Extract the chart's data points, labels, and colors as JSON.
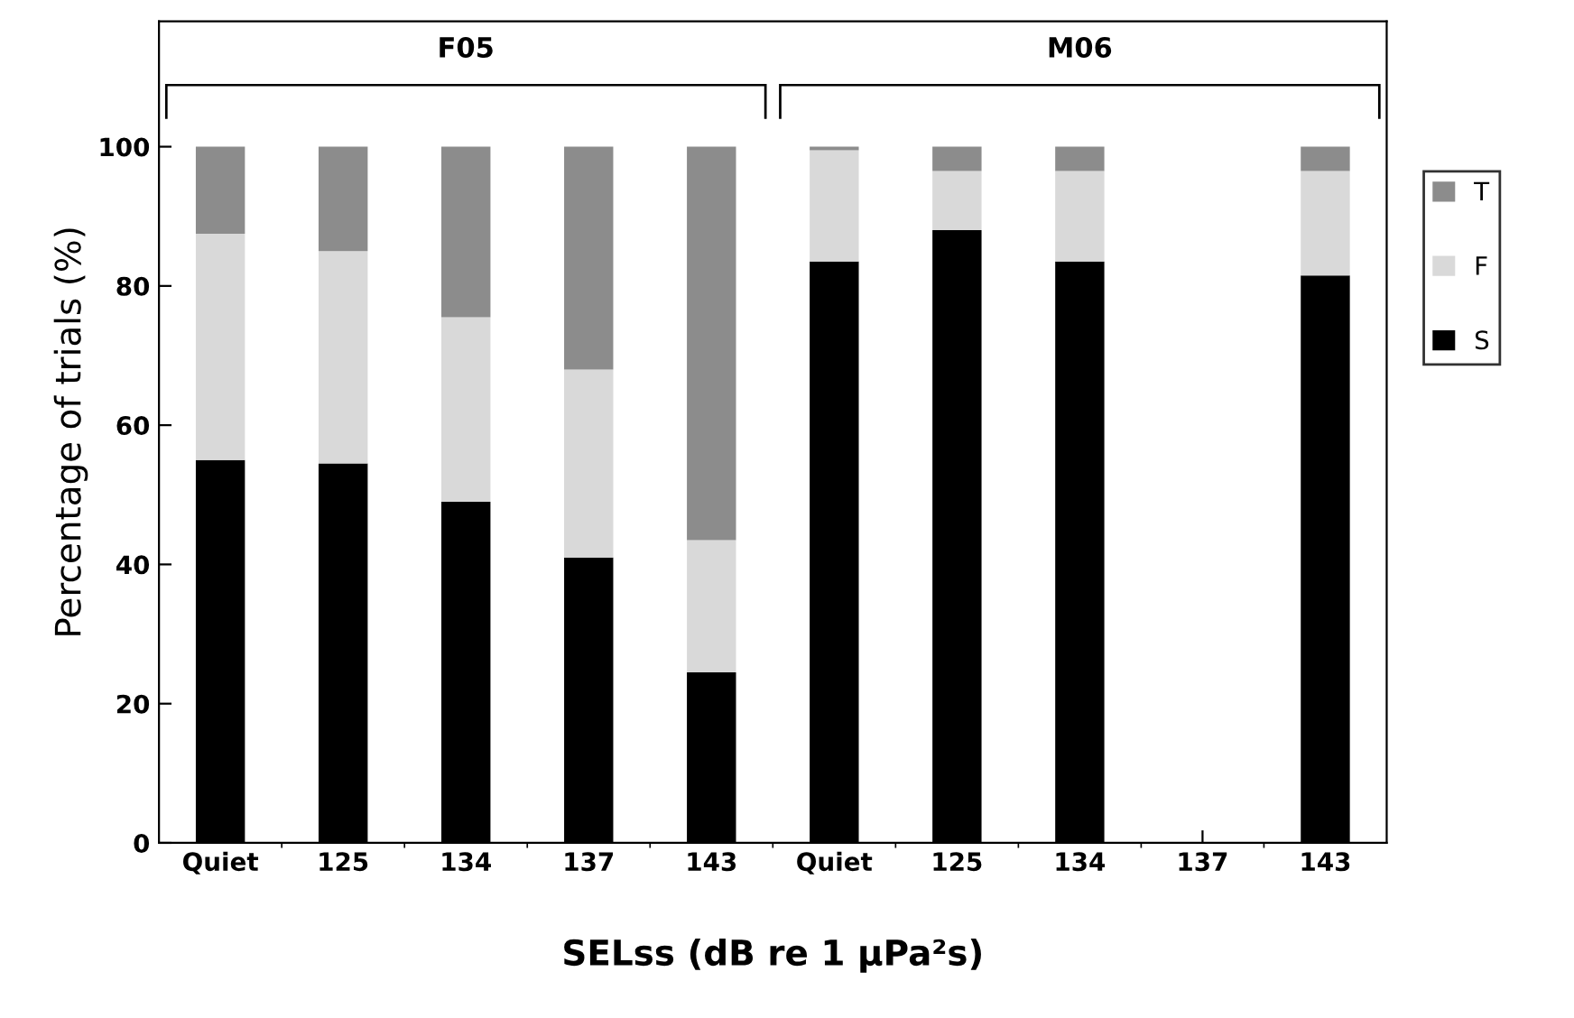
{
  "chart_data": {
    "type": "bar",
    "stacked": true,
    "categories": [
      "Quiet",
      "125",
      "134",
      "137",
      "143",
      "Quiet",
      "125",
      "134",
      "137",
      "143"
    ],
    "series": [
      {
        "name": "S",
        "color": "#000000",
        "values": [
          55,
          54.5,
          49,
          41,
          24.5,
          83.5,
          88,
          83.5,
          null,
          81.5
        ]
      },
      {
        "name": "F",
        "color": "#d9d9d9",
        "values": [
          32.5,
          30.5,
          26.5,
          27,
          19,
          16,
          8.5,
          13,
          null,
          15
        ]
      },
      {
        "name": "T",
        "color": "#8c8c8c",
        "values": [
          12.5,
          15,
          24.5,
          32,
          56.5,
          0.5,
          3.5,
          3.5,
          null,
          3.5
        ]
      }
    ],
    "xlabel": "SELss (dB re 1 µPa²s)",
    "ylabel": "Percentage of trials (%)",
    "ylim": [
      0,
      118
    ],
    "yticks": [
      0,
      20,
      40,
      60,
      80,
      100
    ],
    "annotations": [
      "F05",
      "M06"
    ],
    "legend": "right",
    "grid": false
  }
}
